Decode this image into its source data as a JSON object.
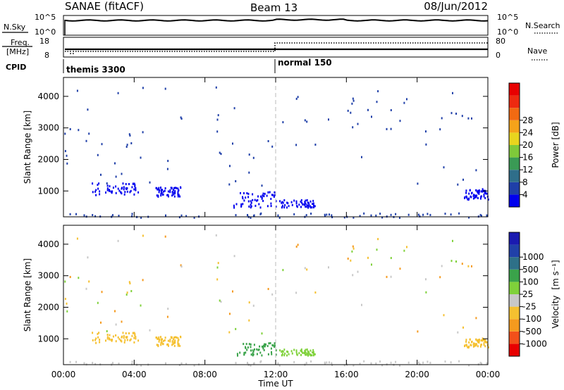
{
  "header": {
    "left_title": "SANAE (fitACF)",
    "center_title": "Beam 13",
    "right_title": "08/Jun/2012"
  },
  "noise_panel": {
    "left_label": "N.Sky",
    "left_ticks": [
      "10^5",
      "10^0"
    ],
    "right_ticks": [
      "10^5",
      "10^0"
    ],
    "right_label": "N.Search"
  },
  "freq_panel": {
    "left_label_line1": "Freq.",
    "left_label_line2": "[MHz]",
    "left_ticks": [
      "18",
      "8"
    ],
    "right_ticks": [
      "80",
      "0"
    ],
    "right_label": "Nave"
  },
  "cpid_panel": {
    "label": "CPID",
    "modes": [
      "themis 3300",
      "normal 150"
    ]
  },
  "axes": {
    "x_ticks": [
      "00:00",
      "04:00",
      "08:00",
      "12:00",
      "16:00",
      "20:00",
      "00:00"
    ],
    "xlabel": "Time UT",
    "ylabel": "Slant Range [km]",
    "y_ticks": [
      "1000",
      "2000",
      "3000",
      "4000"
    ]
  },
  "colors": {
    "power": [
      "#0000ee",
      "#1f3fa8",
      "#2f6e8a",
      "#3a9a55",
      "#7fc93a",
      "#e8d51e",
      "#f5a31a",
      "#f26a12",
      "#ee2a10",
      "#e80000"
    ],
    "velocity": [
      "#e80000",
      "#f2501a",
      "#f59a1e",
      "#f5c030",
      "#c8c8c8",
      "#7fd13a",
      "#3aa34a",
      "#2e7088",
      "#2040a8",
      "#1a1ab0"
    ]
  },
  "power_colorbar": {
    "label": "Power [dB]",
    "ticks": [
      "4",
      "8",
      "12",
      "16",
      "20",
      "24",
      "28"
    ]
  },
  "velocity_colorbar": {
    "label": "Velocity",
    "unit": "[m s⁻¹]",
    "ticks": [
      "-1000",
      "-500",
      "-100",
      "-25",
      "25",
      "100",
      "500",
      "1000"
    ]
  },
  "chart_data": [
    {
      "type": "line",
      "panel": "noise",
      "series": [
        {
          "name": "N.Sky",
          "description": "noise trace near upper limit all day"
        }
      ],
      "ylim_labels": [
        "10^0",
        "10^5"
      ],
      "xlim_hours": [
        0,
        24
      ]
    },
    {
      "type": "line",
      "panel": "frequency_and_nave",
      "series": [
        {
          "name": "Freq.",
          "x_hours": [
            0,
            12,
            12,
            24
          ],
          "y": [
            10.5,
            10.5,
            10.5,
            10.5
          ]
        },
        {
          "name": "Nave",
          "x_hours": [
            0,
            12,
            12,
            24
          ],
          "y": [
            10,
            10,
            60,
            60
          ]
        }
      ],
      "ylim": [
        8,
        18
      ],
      "y2lim": [
        0,
        80
      ]
    },
    {
      "type": "scatter",
      "panel": "power",
      "ylim": [
        180,
        4600
      ],
      "xlim_hours": [
        0,
        24
      ],
      "clusters": [
        {
          "x_range_hours": [
            1.6,
            4.2
          ],
          "y_range_km": [
            900,
            1300
          ],
          "value_db": 4
        },
        {
          "x_range_hours": [
            5.2,
            6.6
          ],
          "y_range_km": [
            850,
            1150
          ],
          "value_db": 4
        },
        {
          "x_range_hours": [
            9.6,
            12.0
          ],
          "y_range_km": [
            500,
            1000
          ],
          "value_db": 4
        },
        {
          "x_range_hours": [
            12.2,
            14.2
          ],
          "y_range_km": [
            500,
            750
          ],
          "value_db": 4
        },
        {
          "x_range_hours": [
            22.6,
            24.0
          ],
          "y_range_km": [
            750,
            1100
          ],
          "value_db": 4
        },
        {
          "x_range_hours": [
            0.0,
            24.0
          ],
          "y_range_km": [
            180,
            320
          ],
          "value_db": 8
        }
      ]
    },
    {
      "type": "scatter",
      "panel": "velocity",
      "ylim": [
        180,
        4600
      ],
      "xlim_hours": [
        0,
        24
      ],
      "clusters": [
        {
          "x_range_hours": [
            1.6,
            4.2
          ],
          "y_range_km": [
            900,
            1250
          ],
          "value_ms": -100
        },
        {
          "x_range_hours": [
            5.2,
            6.6
          ],
          "y_range_km": [
            800,
            1100
          ],
          "value_ms": -100
        },
        {
          "x_range_hours": [
            9.8,
            12.0
          ],
          "y_range_km": [
            500,
            900
          ],
          "value_ms": 100
        },
        {
          "x_range_hours": [
            12.2,
            14.2
          ],
          "y_range_km": [
            500,
            700
          ],
          "value_ms": 25
        },
        {
          "x_range_hours": [
            22.6,
            24.0
          ],
          "y_range_km": [
            750,
            1050
          ],
          "value_ms": -100
        },
        {
          "x_range_hours": [
            0.0,
            24.0
          ],
          "y_range_km": [
            180,
            320
          ],
          "value_ms": -25
        }
      ]
    }
  ]
}
